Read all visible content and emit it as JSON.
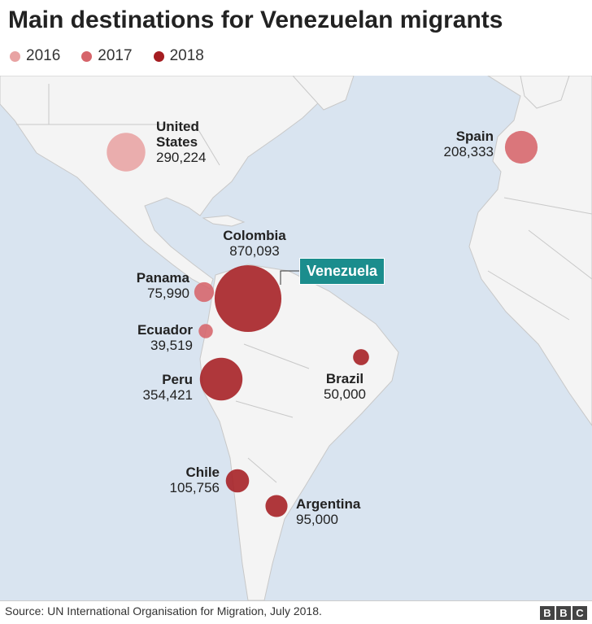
{
  "title": "Main destinations for Venezuelan migrants",
  "legend": [
    {
      "label": "2016",
      "color": "#e8a3a3"
    },
    {
      "label": "2017",
      "color": "#d6646a"
    },
    {
      "label": "2018",
      "color": "#a51d21"
    }
  ],
  "origin": "Venezuela",
  "destinations": [
    {
      "name": "United States",
      "value": 290224,
      "value_label": "290,224",
      "color": "#e8a3a3"
    },
    {
      "name": "Spain",
      "value": 208333,
      "value_label": "208,333",
      "color": "#d6646a"
    },
    {
      "name": "Colombia",
      "value": 870093,
      "value_label": "870,093",
      "color": "#a51d21"
    },
    {
      "name": "Panama",
      "value": 75990,
      "value_label": "75,990",
      "color": "#d6646a"
    },
    {
      "name": "Ecuador",
      "value": 39519,
      "value_label": "39,519",
      "color": "#d6646a"
    },
    {
      "name": "Peru",
      "value": 354421,
      "value_label": "354,421",
      "color": "#a51d21"
    },
    {
      "name": "Brazil",
      "value": 50000,
      "value_label": "50,000",
      "color": "#a51d21"
    },
    {
      "name": "Chile",
      "value": 105756,
      "value_label": "105,756",
      "color": "#a51d21"
    },
    {
      "name": "Argentina",
      "value": 95000,
      "value_label": "95,000",
      "color": "#a51d21"
    }
  ],
  "source": "Source: UN International Organisation for Migration, July 2018.",
  "logo": [
    "B",
    "B",
    "C"
  ]
}
